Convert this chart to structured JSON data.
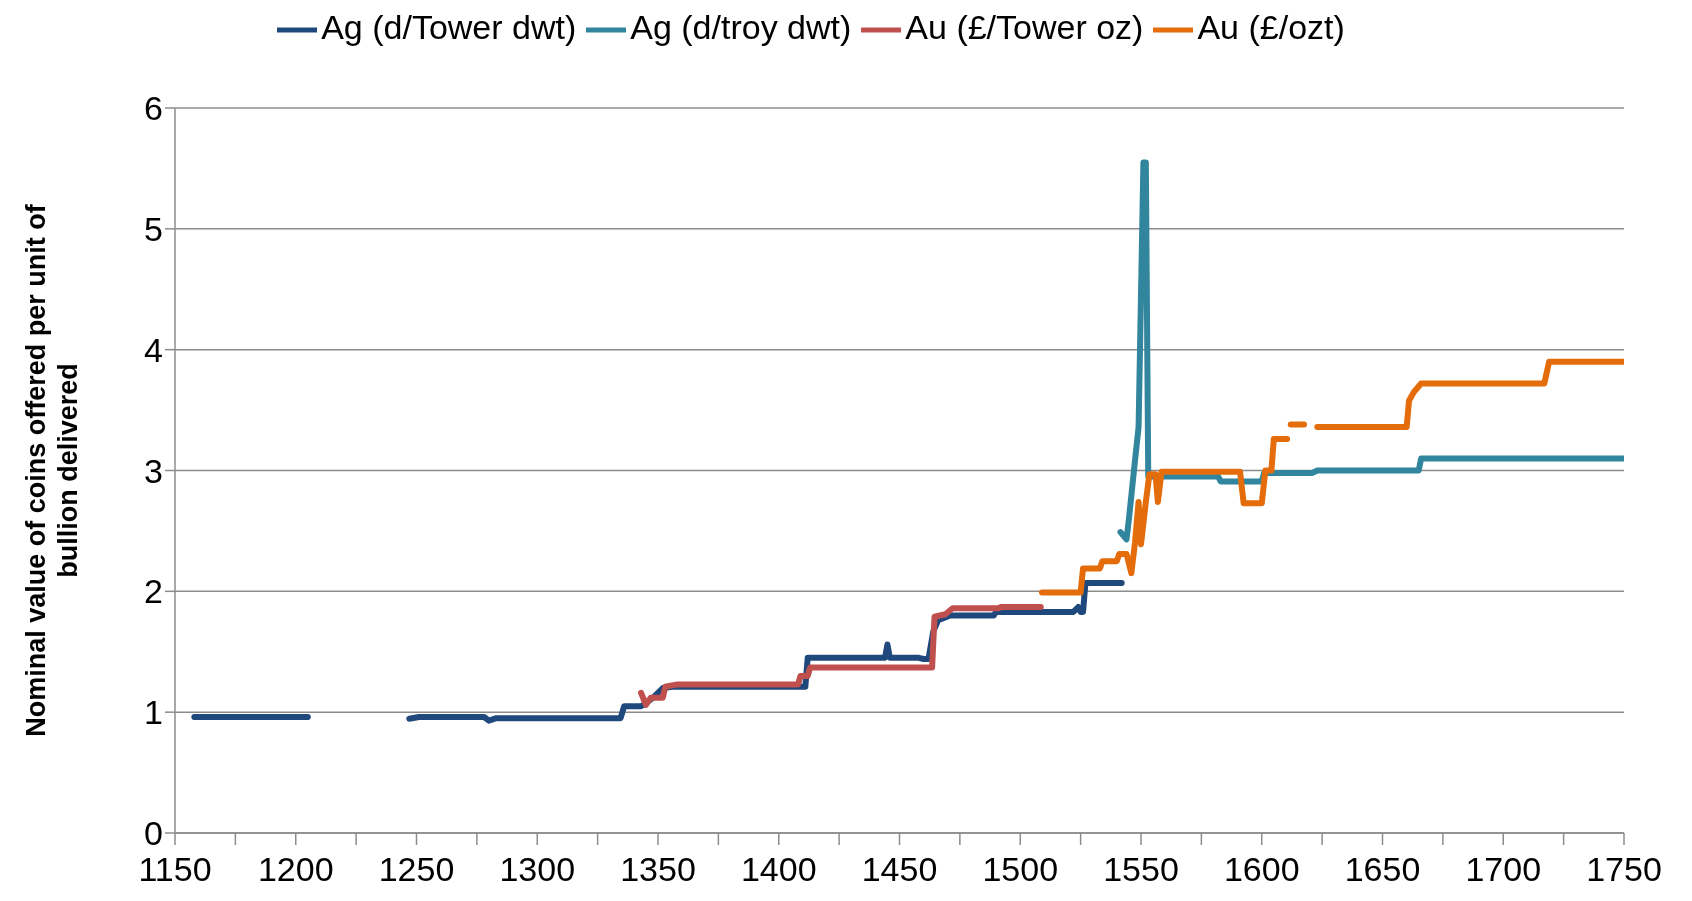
{
  "chart_data": {
    "type": "line",
    "ylabel": "Nominal value of coins offered per unit of bullion delivered",
    "legend": "top",
    "grid": "y",
    "marker": "none",
    "line_style": "solid",
    "xlim": [
      1150,
      1750
    ],
    "xticks": [
      1150,
      {
        "value": 1175,
        "label": null
      },
      1200,
      {
        "value": 1225,
        "label": null
      },
      1250,
      {
        "value": 1275,
        "label": null
      },
      1300,
      {
        "value": 1325,
        "label": null
      },
      1350,
      {
        "value": 1375,
        "label": null
      },
      1400,
      {
        "value": 1425,
        "label": null
      },
      1450,
      {
        "value": 1475,
        "label": null
      },
      1500,
      {
        "value": 1525,
        "label": null
      },
      1550,
      {
        "value": 1575,
        "label": null
      },
      1600,
      {
        "value": 1625,
        "label": null
      },
      1650,
      {
        "value": 1675,
        "label": null
      },
      1700,
      {
        "value": 1725,
        "label": null
      },
      1750
    ],
    "ylim": [
      0,
      6
    ],
    "yticks": [
      0,
      1,
      2,
      3,
      4,
      5,
      6
    ],
    "series": [
      {
        "name": "Ag (d/Tower dwt)",
        "color": "#1f497d",
        "x": [
          1158,
          1205,
          1206,
          1247,
          1251,
          1278,
          1280,
          1283,
          1334.5,
          1336,
          1343,
          1344,
          1348,
          1352,
          1356,
          1411,
          1412,
          1444,
          1445,
          1446,
          1458,
          1460,
          1462,
          1464,
          1466,
          1471,
          1489,
          1490,
          1522,
          1524,
          1525,
          1526,
          1527,
          1542
        ],
        "values": [
          0.96,
          0.96,
          null,
          0.945,
          0.96,
          0.96,
          0.93,
          0.95,
          0.95,
          1.05,
          1.05,
          1.06,
          1.12,
          1.2,
          1.21,
          1.21,
          1.45,
          1.45,
          1.56,
          1.45,
          1.45,
          1.44,
          1.44,
          1.67,
          1.76,
          1.8,
          1.8,
          1.83,
          1.83,
          1.87,
          1.83,
          1.83,
          2.07,
          2.07
        ]
      },
      {
        "name": "Ag (d/troy dwt)",
        "color": "#31859c",
        "x": [
          1541.5,
          1544,
          1545,
          1547.5,
          1549,
          1551,
          1552,
          1553,
          1582,
          1583,
          1600,
          1601,
          1621,
          1623,
          1665,
          1666,
          1750
        ],
        "values": [
          2.49,
          2.43,
          2.6,
          3.08,
          3.36,
          5.55,
          5.55,
          2.95,
          2.95,
          2.91,
          2.91,
          2.98,
          2.98,
          3.0,
          3.0,
          3.1,
          3.1
        ]
      },
      {
        "name": "Au (£/Tower oz)",
        "color": "#c0504d",
        "x": [
          1343,
          1345,
          1347,
          1352,
          1353,
          1358,
          1408,
          1409,
          1412,
          1413,
          1463.5,
          1464.5,
          1469,
          1472,
          1491,
          1492,
          1508.5
        ],
        "values": [
          1.16,
          1.06,
          1.12,
          1.12,
          1.21,
          1.23,
          1.23,
          1.3,
          1.3,
          1.37,
          1.37,
          1.79,
          1.81,
          1.86,
          1.86,
          1.87,
          1.87
        ]
      },
      {
        "name": "Au (£/ozt)",
        "color": "#e46c0a",
        "x": [
          1509,
          1525,
          1526,
          1533,
          1534,
          1540,
          1541,
          1544,
          1546,
          1547.5,
          1549,
          1550,
          1552,
          1553.5,
          1556,
          1557,
          1558.5,
          1591,
          1592.5,
          1600,
          1601.5,
          1604,
          1605,
          1610.5,
          1611,
          1612,
          1617.5,
          1620,
          1623,
          1660,
          1661,
          1663,
          1666,
          1717,
          1719,
          1750
        ],
        "values": [
          1.99,
          1.99,
          2.19,
          2.19,
          2.25,
          2.25,
          2.31,
          2.31,
          2.15,
          2.4,
          2.74,
          2.39,
          2.74,
          2.97,
          2.97,
          2.74,
          2.99,
          2.99,
          2.73,
          2.73,
          3.0,
          3.0,
          3.26,
          3.26,
          null,
          3.38,
          3.38,
          null,
          3.36,
          3.36,
          3.58,
          3.65,
          3.72,
          3.72,
          3.9,
          3.9
        ]
      }
    ]
  }
}
